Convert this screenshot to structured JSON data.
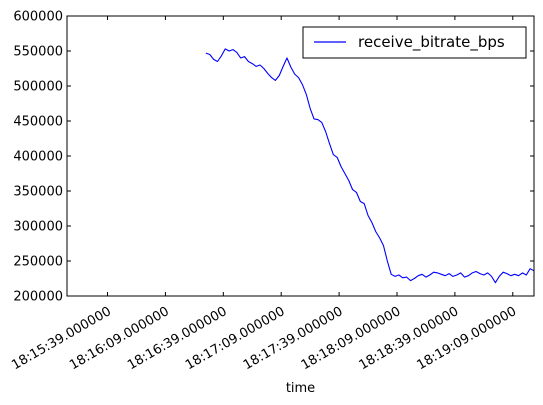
{
  "chart_data": {
    "type": "line",
    "title": "",
    "xlabel": "time",
    "ylabel": "",
    "x_tick_labels": [
      "18:15:39.000000",
      "18:16:09.000000",
      "18:16:39.000000",
      "18:17:09.000000",
      "18:17:39.000000",
      "18:18:09.000000",
      "18:18:39.000000",
      "18:19:09.000000"
    ],
    "y_ticks": [
      200000,
      250000,
      300000,
      350000,
      400000,
      450000,
      500000,
      550000,
      600000
    ],
    "y_tick_labels": [
      "200000",
      "250000",
      "300000",
      "350000",
      "400000",
      "450000",
      "500000",
      "550000",
      "600000"
    ],
    "xlim": [
      "18:15:18",
      "18:19:20"
    ],
    "ylim": [
      200000,
      600000
    ],
    "grid": false,
    "legend_position": "top-right",
    "series": [
      {
        "name": "receive_bitrate_bps",
        "color": "#0000ff",
        "x": [
          "18:16:30",
          "18:16:32",
          "18:16:34",
          "18:16:36",
          "18:16:38",
          "18:16:40",
          "18:16:42",
          "18:16:44",
          "18:16:46",
          "18:16:48",
          "18:16:50",
          "18:16:52",
          "18:16:54",
          "18:16:56",
          "18:16:58",
          "18:17:00",
          "18:17:02",
          "18:17:04",
          "18:17:06",
          "18:17:08",
          "18:17:10",
          "18:17:12",
          "18:17:14",
          "18:17:16",
          "18:17:18",
          "18:17:20",
          "18:17:22",
          "18:17:24",
          "18:17:26",
          "18:17:28",
          "18:17:30",
          "18:17:32",
          "18:17:34",
          "18:17:36",
          "18:17:38",
          "18:17:40",
          "18:17:42",
          "18:17:44",
          "18:17:46",
          "18:17:48",
          "18:17:50",
          "18:17:52",
          "18:17:54",
          "18:17:56",
          "18:17:58",
          "18:18:00",
          "18:18:02",
          "18:18:04",
          "18:18:06",
          "18:18:08",
          "18:18:10",
          "18:18:12",
          "18:18:14",
          "18:18:16",
          "18:18:18",
          "18:18:20",
          "18:18:22",
          "18:18:24",
          "18:18:26",
          "18:18:28",
          "18:18:30",
          "18:18:32",
          "18:18:34",
          "18:18:36",
          "18:18:38",
          "18:18:40",
          "18:18:42",
          "18:18:44",
          "18:18:46",
          "18:18:48",
          "18:18:50",
          "18:18:52",
          "18:18:54",
          "18:18:56",
          "18:18:58",
          "18:19:00",
          "18:19:02",
          "18:19:04",
          "18:19:06",
          "18:19:08",
          "18:19:10",
          "18:19:12",
          "18:19:14",
          "18:19:16",
          "18:19:18",
          "18:19:20"
        ],
        "values": [
          547000,
          545000,
          538000,
          535000,
          543000,
          553000,
          550000,
          552000,
          548000,
          540000,
          542000,
          535000,
          532000,
          528000,
          530000,
          525000,
          518000,
          512000,
          508000,
          515000,
          528000,
          540000,
          527000,
          517000,
          512000,
          502000,
          488000,
          468000,
          453000,
          452000,
          448000,
          435000,
          418000,
          402000,
          398000,
          385000,
          375000,
          365000,
          352000,
          348000,
          335000,
          332000,
          315000,
          305000,
          292000,
          283000,
          272000,
          250000,
          231000,
          228000,
          230000,
          226000,
          227000,
          222000,
          225000,
          229000,
          231000,
          227000,
          230000,
          234000,
          233000,
          231000,
          229000,
          232000,
          228000,
          230000,
          233000,
          227000,
          229000,
          233000,
          235000,
          232000,
          230000,
          233000,
          228000,
          219000,
          228000,
          234000,
          232000,
          229000,
          231000,
          229000,
          233000,
          230000,
          239000,
          236000
        ]
      }
    ]
  }
}
